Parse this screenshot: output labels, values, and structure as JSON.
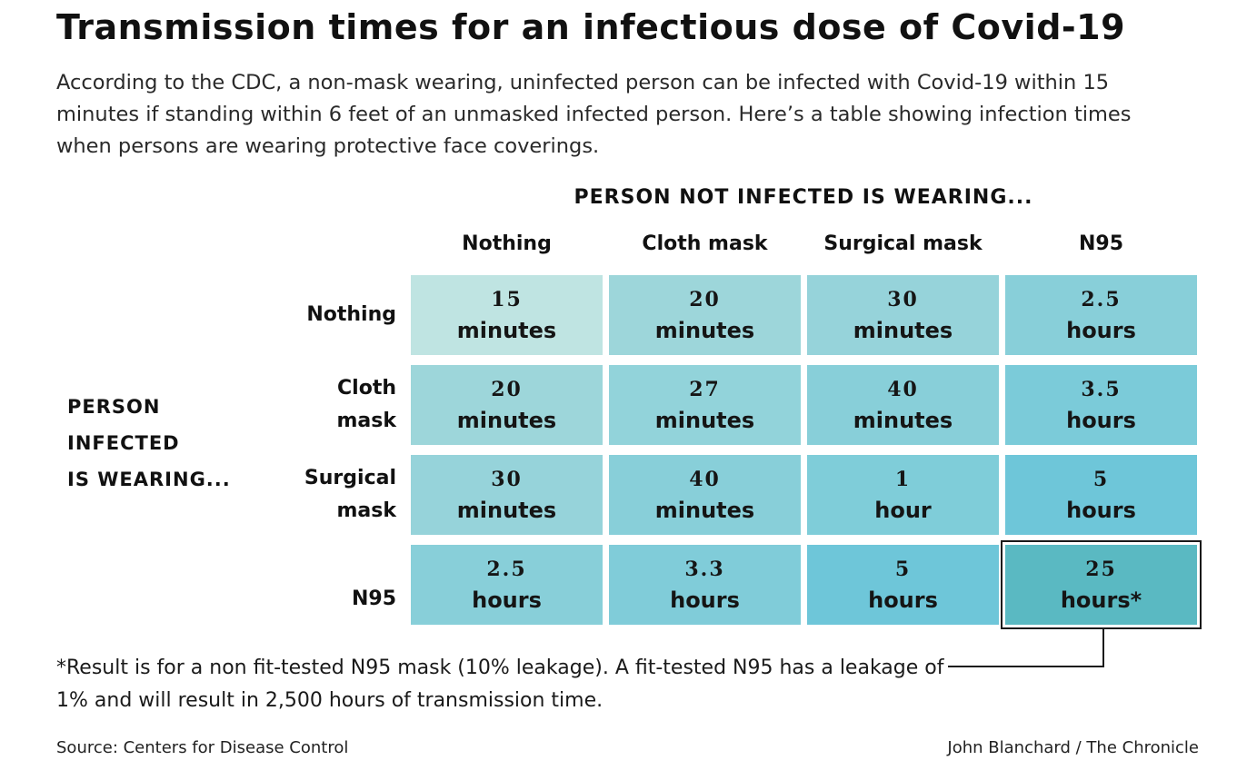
{
  "title": "Transmission times for an infectious dose of Covid-19",
  "subtitle": "According to the CDC, a non-mask wearing, uninfected person can be infected with Covid-19 within 15 minutes if standing within 6 feet of an unmasked infected person. Here’s a table showing infection times when persons are wearing protective face coverings.",
  "column_title": "PERSON NOT INFECTED IS WEARING...",
  "row_title": [
    "PERSON",
    "INFECTED",
    "IS WEARING..."
  ],
  "footnote": "*Result is for a non fit-tested N95 mask (10% leakage). A fit-tested N95 has a leakage of 1% and will result in 2,500 hours of transmission time.",
  "source": "Source: Centers for Disease Control",
  "credit": "John Blanchard / The Chronicle",
  "chart_data": {
    "type": "table",
    "columns": [
      "Nothing",
      "Cloth mask",
      "Surgical mask",
      "N95"
    ],
    "rows": [
      {
        "label": "Nothing",
        "cells": [
          {
            "value": "15",
            "unit": "minutes",
            "color": "#bfe4e2"
          },
          {
            "value": "20",
            "unit": "minutes",
            "color": "#9dd6da"
          },
          {
            "value": "30",
            "unit": "minutes",
            "color": "#96d3da"
          },
          {
            "value": "2.5",
            "unit": "hours",
            "color": "#88cfd9"
          }
        ]
      },
      {
        "label": "Cloth mask",
        "cells": [
          {
            "value": "20",
            "unit": "minutes",
            "color": "#9dd6da"
          },
          {
            "value": "27",
            "unit": "minutes",
            "color": "#92d3da"
          },
          {
            "value": "40",
            "unit": "minutes",
            "color": "#88cfd9"
          },
          {
            "value": "3.5",
            "unit": "hours",
            "color": "#7bcbd9"
          }
        ]
      },
      {
        "label": "Surgical mask",
        "cells": [
          {
            "value": "30",
            "unit": "minutes",
            "color": "#96d3da"
          },
          {
            "value": "40",
            "unit": "minutes",
            "color": "#88cfd9"
          },
          {
            "value": "1",
            "unit": "hour",
            "color": "#7fcdd9"
          },
          {
            "value": "5",
            "unit": "hours",
            "color": "#6ec6d9"
          }
        ]
      },
      {
        "label": "N95",
        "cells": [
          {
            "value": "2.5",
            "unit": "hours",
            "color": "#88cfd9"
          },
          {
            "value": "3.3",
            "unit": "hours",
            "color": "#80ccd9"
          },
          {
            "value": "5",
            "unit": "hours",
            "color": "#6ec6d9"
          },
          {
            "value": "25",
            "unit": "hours*",
            "color": "#5ab9c2",
            "highlight": true
          }
        ]
      }
    ]
  }
}
